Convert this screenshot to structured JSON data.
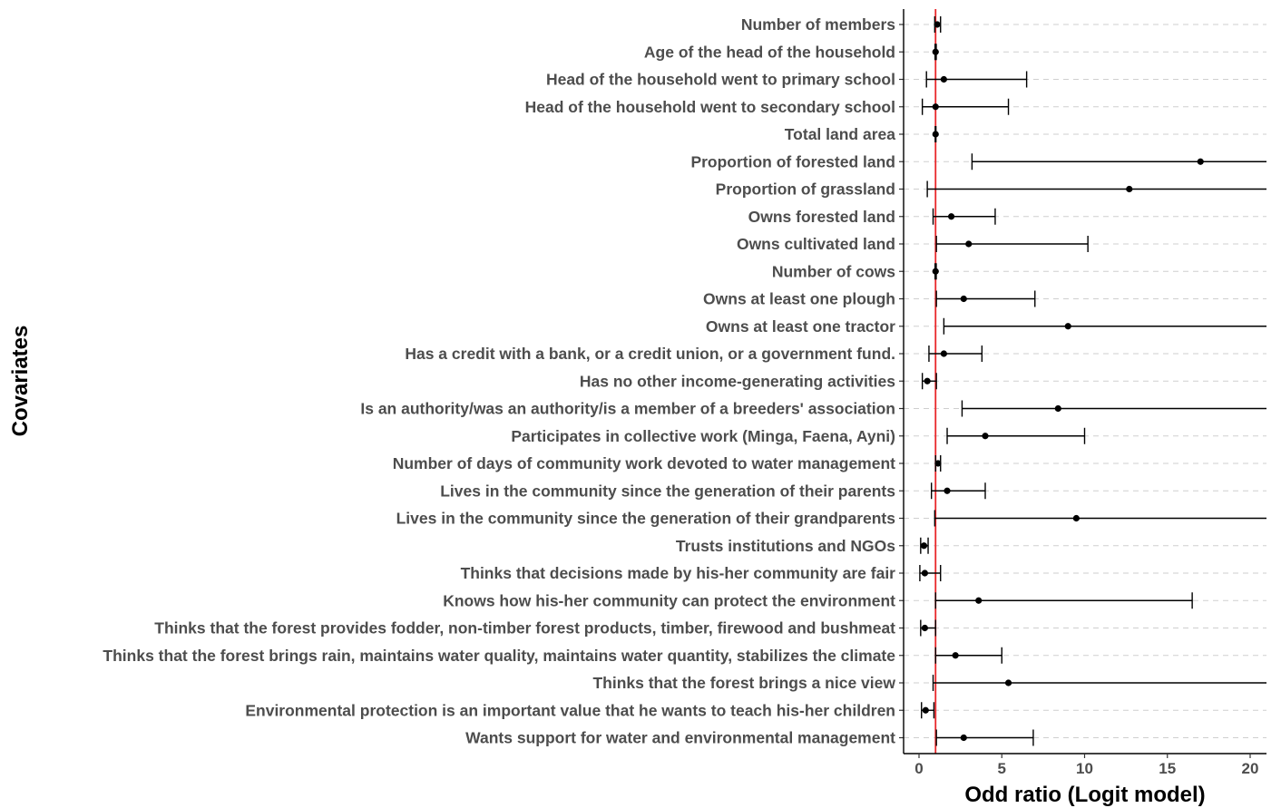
{
  "chart_data": {
    "type": "forest",
    "xlabel": "Odd ratio (Logit model)",
    "ylabel": "Covariates",
    "xlim": [
      -1,
      21
    ],
    "xticks": [
      0,
      5,
      10,
      15,
      20
    ],
    "reference_line": {
      "x": 1,
      "color": "#e8262a"
    },
    "gridlines": "horizontal dashed",
    "rows": [
      {
        "label": "Number of members",
        "or": 1.1,
        "lo": 0.95,
        "hi": 1.3
      },
      {
        "label": "Age of the head of the household",
        "or": 1.0,
        "lo": 0.97,
        "hi": 1.04
      },
      {
        "label": "Head of the household went to primary school",
        "or": 1.5,
        "lo": 0.45,
        "hi": 6.5
      },
      {
        "label": "Head of the household went to secondary school",
        "or": 1.0,
        "lo": 0.2,
        "hi": 5.4
      },
      {
        "label": "Total land area",
        "or": 1.0,
        "lo": 0.98,
        "hi": 1.02
      },
      {
        "label": "Proportion of forested land",
        "or": 17.0,
        "lo": 3.2,
        "hi": 21.0
      },
      {
        "label": "Proportion of grassland",
        "or": 12.7,
        "lo": 0.5,
        "hi": 21.0
      },
      {
        "label": "Owns forested land",
        "or": 1.95,
        "lo": 0.85,
        "hi": 4.6
      },
      {
        "label": "Owns cultivated land",
        "or": 3.0,
        "lo": 1.05,
        "hi": 10.2
      },
      {
        "label": "Number of cows",
        "or": 1.0,
        "lo": 0.97,
        "hi": 1.04
      },
      {
        "label": "Owns at least one plough",
        "or": 2.7,
        "lo": 1.05,
        "hi": 7.0
      },
      {
        "label": "Owns at least one tractor",
        "or": 9.0,
        "lo": 1.5,
        "hi": 21.0
      },
      {
        "label": "Has a credit with a bank, or a credit union, or a government fund.",
        "or": 1.5,
        "lo": 0.6,
        "hi": 3.8
      },
      {
        "label": "Has no other income-generating activities",
        "or": 0.5,
        "lo": 0.2,
        "hi": 1.05
      },
      {
        "label": "Is an authority/was an authority/is a member of a breeders' association",
        "or": 8.4,
        "lo": 2.6,
        "hi": 21.0
      },
      {
        "label": "Participates in collective work (Minga, Faena, Ayni)",
        "or": 4.0,
        "lo": 1.7,
        "hi": 10.0
      },
      {
        "label": "Number of days of community work devoted to water management",
        "or": 1.15,
        "lo": 1.0,
        "hi": 1.3
      },
      {
        "label": "Lives in the community since the generation of their parents",
        "or": 1.7,
        "lo": 0.75,
        "hi": 4.0
      },
      {
        "label": "Lives in the community since the generation of their grandparents",
        "or": 9.5,
        "lo": 0.95,
        "hi": 21.0
      },
      {
        "label": "Trusts institutions and NGOs",
        "or": 0.3,
        "lo": 0.1,
        "hi": 0.55
      },
      {
        "label": "Thinks that decisions made by his-her community are fair",
        "or": 0.35,
        "lo": 0.05,
        "hi": 1.3
      },
      {
        "label": "Knows how his-her community can protect the environment",
        "or": 3.6,
        "lo": 1.0,
        "hi": 16.5
      },
      {
        "label": "Thinks that the forest provides fodder, non-timber forest products, timber, firewood and bushmeat",
        "or": 0.35,
        "lo": 0.1,
        "hi": 1.0
      },
      {
        "label": "Thinks that the forest brings rain, maintains water quality, maintains water quantity, stabilizes the climate",
        "or": 2.2,
        "lo": 1.0,
        "hi": 5.0
      },
      {
        "label": "Thinks that the forest brings a nice view",
        "or": 5.4,
        "lo": 0.85,
        "hi": 21.0
      },
      {
        "label": "Environmental protection is an important value that he wants to teach his-her children",
        "or": 0.4,
        "lo": 0.15,
        "hi": 0.9
      },
      {
        "label": "Wants support for water and environmental management",
        "or": 2.7,
        "lo": 1.05,
        "hi": 6.9
      }
    ]
  }
}
